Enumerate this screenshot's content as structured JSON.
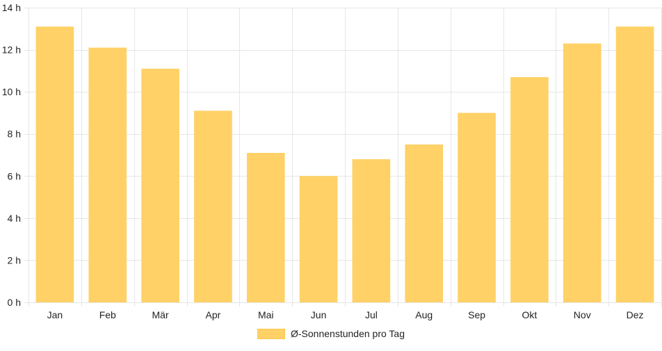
{
  "chart_data": {
    "type": "bar",
    "categories": [
      "Jan",
      "Feb",
      "Mär",
      "Apr",
      "Mai",
      "Jun",
      "Jul",
      "Aug",
      "Sep",
      "Okt",
      "Nov",
      "Dez"
    ],
    "series": [
      {
        "name": "Ø-Sonnenstunden pro Tag",
        "values": [
          13.1,
          12.1,
          11.1,
          9.1,
          7.1,
          6.0,
          6.8,
          7.5,
          9.0,
          10.7,
          12.3,
          13.1
        ]
      }
    ],
    "ylim": [
      0,
      14
    ],
    "yticks": [
      0,
      2,
      4,
      6,
      8,
      10,
      12,
      14
    ],
    "ytick_suffix": " h",
    "grid": true,
    "legend_position": "bottom-center",
    "colors": {
      "bar_fill": "#ffd166",
      "grid": "#e6e6e6",
      "text": "#222222"
    }
  },
  "legend": {
    "label": "Ø-Sonnenstunden pro Tag"
  }
}
